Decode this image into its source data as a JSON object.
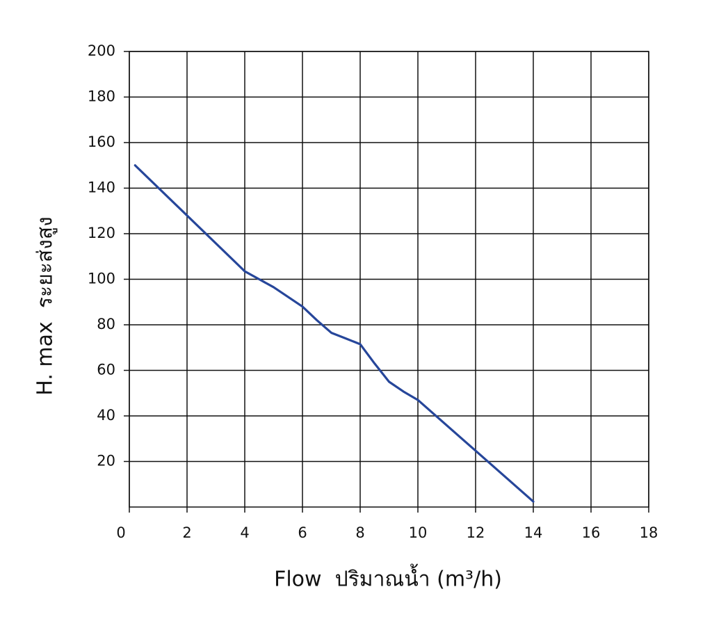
{
  "chart_data": {
    "type": "line",
    "x_label": "Flow  ปริมาณน้ำ (m³/h)",
    "y_label": "H. max  ระยะส่งสูง",
    "series": [
      {
        "color": "#26469a",
        "x": [
          0.2,
          4,
          4.5,
          5,
          6,
          6.5,
          7,
          7.5,
          8,
          8.5,
          9,
          9.5,
          10,
          12,
          14
        ],
        "values": [
          150,
          103.5,
          100,
          96.5,
          88,
          82,
          76.5,
          74,
          71.5,
          63,
          55,
          50.7,
          47,
          24.7,
          2.4
        ]
      }
    ],
    "xlim": [
      0,
      18
    ],
    "xticks": [
      0,
      2,
      4,
      6,
      8,
      10,
      12,
      14,
      16,
      18
    ],
    "ylim": [
      0,
      200
    ],
    "yticks": [
      20,
      40,
      60,
      80,
      100,
      120,
      140,
      160,
      180,
      200
    ],
    "grid": true
  }
}
